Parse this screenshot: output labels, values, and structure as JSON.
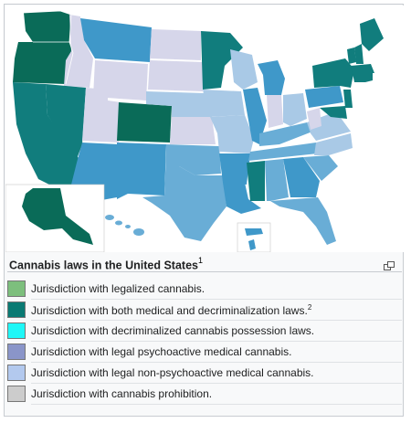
{
  "caption": {
    "title": "Cannabis laws in the United States",
    "footnote": "1"
  },
  "legend": [
    {
      "label": "Jurisdiction with legalized cannabis.",
      "footnote": "",
      "color": "#7dbf7d"
    },
    {
      "label": "Jurisdiction with both medical and decriminalization laws.",
      "footnote": "2",
      "color": "#0a7a73"
    },
    {
      "label": "Jurisdiction with decriminalized cannabis possession laws.",
      "footnote": "",
      "color": "#1ff7f7"
    },
    {
      "label": "Jurisdiction with legal psychoactive medical cannabis.",
      "footnote": "",
      "color": "#8a95c9"
    },
    {
      "label": "Jurisdiction with legal non-psychoactive medical cannabis.",
      "footnote": "",
      "color": "#b3c9ee"
    },
    {
      "label": "Jurisdiction with cannabis prohibition.",
      "footnote": "",
      "color": "#cccccc"
    }
  ],
  "map_colors": {
    "legal": "#0a6b58",
    "medical_decrim": "#117d7d",
    "medical": "#3f98c9",
    "non_psychoactive": "#69add6",
    "cbd": "#a9c9e6",
    "prohibition": "#d6d6ea"
  }
}
